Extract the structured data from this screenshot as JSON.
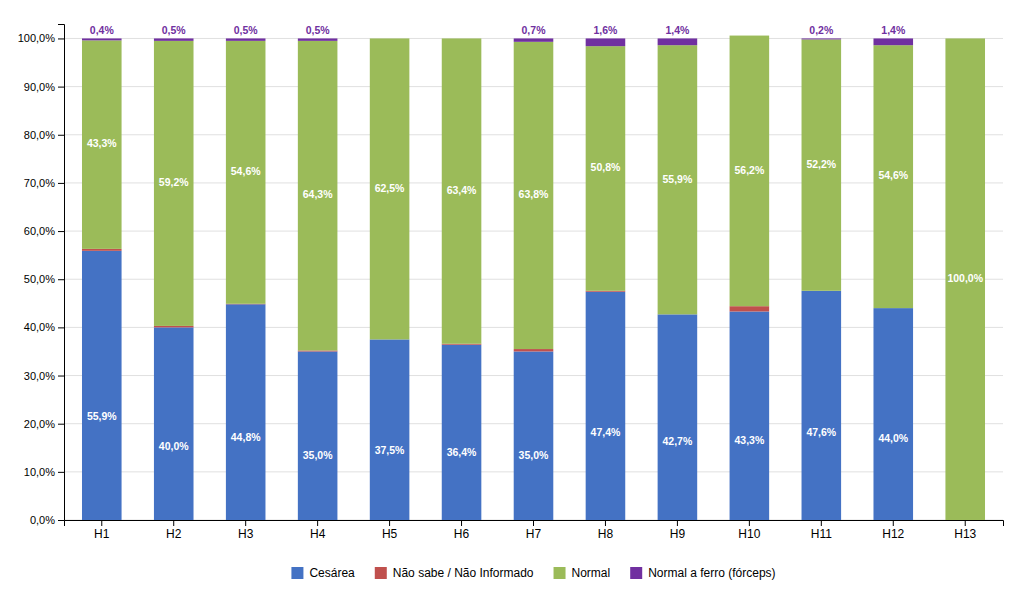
{
  "chart_data": {
    "type": "bar",
    "stacked": true,
    "data_labels": true,
    "grid": true,
    "legend": "bottom",
    "categories": [
      "H1",
      "H2",
      "H3",
      "H4",
      "H5",
      "H6",
      "H7",
      "H8",
      "H9",
      "H10",
      "H11",
      "H12",
      "H13"
    ],
    "series": [
      {
        "name": "Cesárea",
        "color": "#4472C4",
        "values": [
          55.9,
          40.0,
          44.8,
          35.0,
          37.5,
          36.4,
          35.0,
          47.4,
          42.7,
          43.3,
          47.6,
          44.0,
          0.0
        ],
        "value_labels": [
          "55,9%",
          "40,0%",
          "44,8%",
          "35,0%",
          "37,5%",
          "36,4%",
          "35,0%",
          "47,4%",
          "42,7%",
          "43,3%",
          "47,6%",
          "44,0%",
          null
        ]
      },
      {
        "name": "Não sabe / Não Informado",
        "color": "#C0504D",
        "values": [
          0.4,
          0.3,
          0.1,
          0.2,
          0.0,
          0.2,
          0.5,
          0.2,
          0.0,
          1.1,
          0.0,
          0.0,
          0.0
        ]
      },
      {
        "name": "Normal",
        "color": "#9BBB59",
        "values": [
          43.3,
          59.2,
          54.6,
          64.3,
          62.5,
          63.4,
          63.8,
          50.8,
          55.9,
          56.2,
          52.2,
          54.6,
          100.0
        ],
        "value_labels": [
          "43,3%",
          "59,2%",
          "54,6%",
          "64,3%",
          "62,5%",
          "63,4%",
          "63,8%",
          "50,8%",
          "55,9%",
          "56,2%",
          "52,2%",
          "54,6%",
          "100,0%"
        ]
      },
      {
        "name": "Normal a ferro (fórceps)",
        "color": "#7030A0",
        "values": [
          0.4,
          0.5,
          0.5,
          0.5,
          0.0,
          0.0,
          0.7,
          1.6,
          1.4,
          0.0,
          0.2,
          1.4,
          0.0
        ],
        "value_labels": [
          "0,4%",
          "0,5%",
          "0,5%",
          "0,5%",
          null,
          null,
          "0,7%",
          "1,6%",
          "1,4%",
          null,
          "0,2%",
          "1,4%",
          null
        ]
      }
    ],
    "ylim": [
      0,
      103
    ],
    "yticks": [
      {
        "value": 0,
        "label": "0,0%"
      },
      {
        "value": 10,
        "label": "10,0%"
      },
      {
        "value": 20,
        "label": "20,0%"
      },
      {
        "value": 30,
        "label": "30,0%"
      },
      {
        "value": 40,
        "label": "40,0%"
      },
      {
        "value": 50,
        "label": "50,0%"
      },
      {
        "value": 60,
        "label": "60,0%"
      },
      {
        "value": 70,
        "label": "70,0%"
      },
      {
        "value": 80,
        "label": "80,0%"
      },
      {
        "value": 90,
        "label": "90,0%"
      },
      {
        "value": 100,
        "label": "100,0%"
      }
    ]
  }
}
